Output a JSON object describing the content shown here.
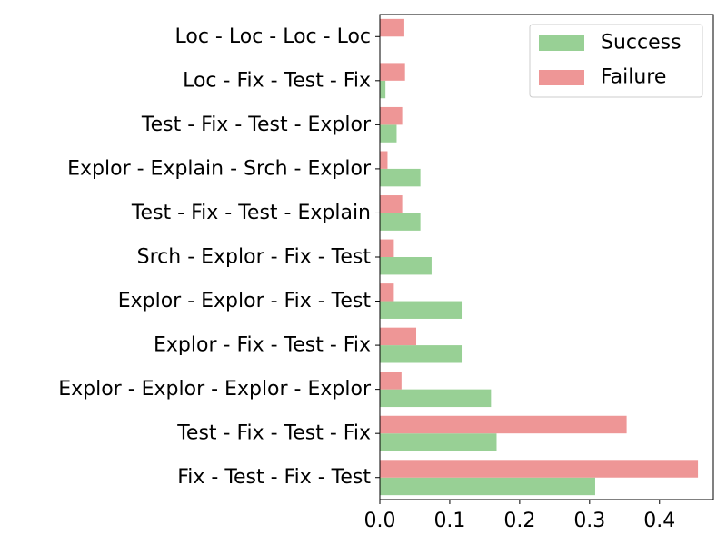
{
  "chart_data": {
    "type": "bar",
    "orientation": "horizontal",
    "categories": [
      "Fix - Test - Fix - Test",
      "Test - Fix - Test - Fix",
      "Explor - Explor - Explor - Explor",
      "Explor - Fix - Test - Fix",
      "Explor - Explor - Fix - Test",
      "Srch - Explor - Fix - Test",
      "Test - Fix - Test - Explain",
      "Explor - Explain - Srch - Explor",
      "Test - Fix - Test - Explor",
      "Loc - Fix - Test - Fix",
      "Loc - Loc - Loc - Loc"
    ],
    "series": [
      {
        "name": "Success",
        "color": "#98d095",
        "values": [
          0.308,
          0.167,
          0.159,
          0.117,
          0.117,
          0.074,
          0.058,
          0.058,
          0.024,
          0.008,
          0.0
        ]
      },
      {
        "name": "Failure",
        "color": "#ee9696",
        "values": [
          0.455,
          0.353,
          0.031,
          0.052,
          0.02,
          0.02,
          0.032,
          0.011,
          0.032,
          0.036,
          0.035
        ]
      }
    ],
    "title": "",
    "xlabel": "",
    "ylabel": "",
    "xlim": [
      0,
      0.477
    ],
    "xticks": [
      0.0,
      0.1,
      0.2,
      0.3,
      0.4
    ],
    "xtick_labels": [
      "0.0",
      "0.1",
      "0.2",
      "0.3",
      "0.4"
    ],
    "grid": false,
    "legend_position": "top-right"
  }
}
